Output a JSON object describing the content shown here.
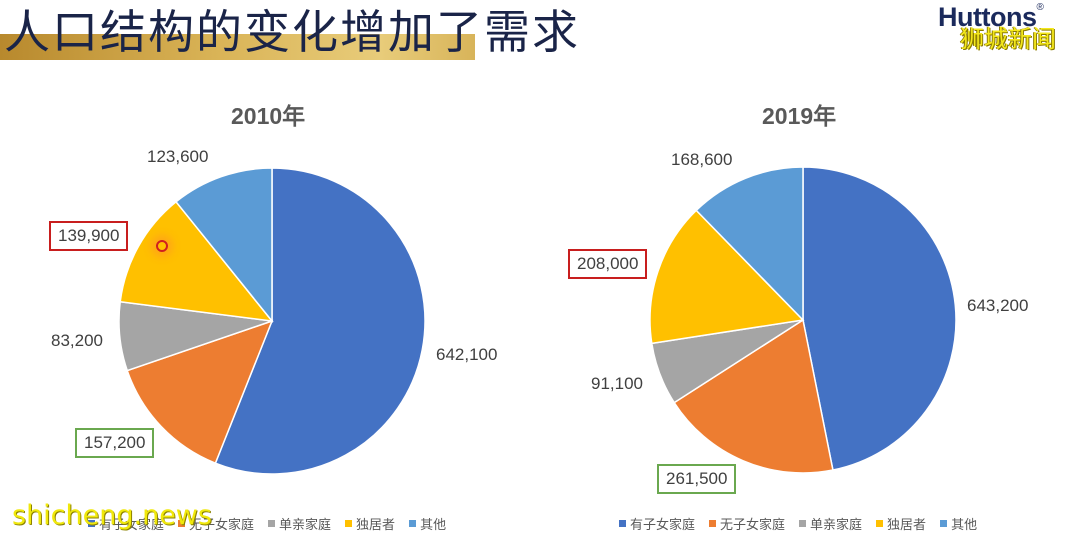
{
  "header": {
    "title": "人口结构的变化增加了需求",
    "brand": "Huttons",
    "brand_mark": "®"
  },
  "watermarks": {
    "top_right": "狮城新闻",
    "bottom_left": "shicheng.news"
  },
  "colors": {
    "with_children": "#4472c4",
    "without_children": "#ed7d31",
    "single_parent": "#a5a5a5",
    "living_alone": "#ffc000",
    "others": "#5b9bd5",
    "highlight_red": "#c81e1e",
    "highlight_green": "#6aa84f"
  },
  "chart_data": [
    {
      "type": "pie",
      "title": "2010年",
      "categories": [
        "有子女家庭",
        "无子女家庭",
        "单亲家庭",
        "独居者",
        "其他"
      ],
      "values": [
        642100,
        157200,
        83200,
        139900,
        123600
      ],
      "labels": [
        "642,100",
        "157,200",
        "83,200",
        "139,900",
        "123,600"
      ],
      "legend_position": "bottom",
      "highlighted": {
        "独居者": "red box",
        "无子女家庭": "green box"
      }
    },
    {
      "type": "pie",
      "title": "2019年",
      "categories": [
        "有子女家庭",
        "无子女家庭",
        "单亲家庭",
        "独居者",
        "其他"
      ],
      "values": [
        643200,
        261500,
        91100,
        208000,
        168600
      ],
      "labels": [
        "643,200",
        "261,500",
        "91,100",
        "208,000",
        "168,600"
      ],
      "legend_position": "bottom",
      "highlighted": {
        "独居者": "red box",
        "无子女家庭": "green box"
      }
    }
  ],
  "legend": [
    "有子女家庭",
    "无子女家庭",
    "单亲家庭",
    "独居者",
    "其他"
  ]
}
